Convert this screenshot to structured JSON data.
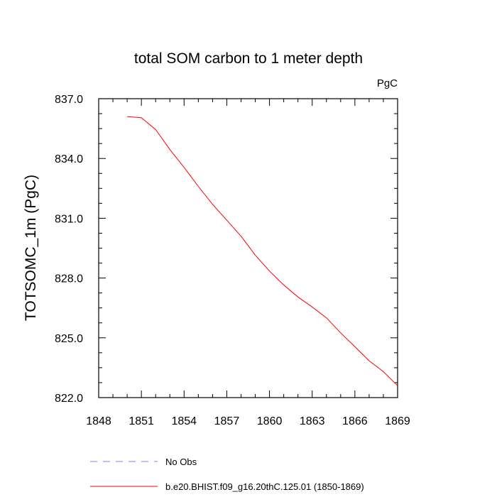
{
  "chart_data": {
    "type": "line",
    "title": "total SOM carbon to 1 meter depth",
    "units_label": "PgC",
    "ylabel": "TOTSOMC_1m  (PgC)",
    "xlabel": "",
    "xlim": [
      1848,
      1869
    ],
    "ylim": [
      822.0,
      837.0
    ],
    "x_ticks": [
      1848,
      1851,
      1854,
      1857,
      1860,
      1863,
      1866,
      1869
    ],
    "x_tick_labels": [
      "1848",
      "1851",
      "1854",
      "1857",
      "1860",
      "1863",
      "1866",
      "1869"
    ],
    "y_ticks": [
      822.0,
      825.0,
      828.0,
      831.0,
      834.0,
      837.0
    ],
    "y_tick_labels": [
      "822.0",
      "825.0",
      "828.0",
      "831.0",
      "834.0",
      "837.0"
    ],
    "grid": false,
    "legend_position": "bottom",
    "series": [
      {
        "name": "b.e20.BHIST.f09_g16.20thC.125.01 (1850-1869)",
        "color": "#ff0000",
        "style": "solid",
        "x": [
          1850,
          1851,
          1852,
          1853,
          1854,
          1855,
          1856,
          1857,
          1858,
          1859,
          1860,
          1861,
          1862,
          1863,
          1864,
          1865,
          1866,
          1867,
          1868,
          1869
        ],
        "values": [
          836.1,
          836.05,
          835.45,
          834.45,
          833.55,
          832.6,
          831.7,
          830.9,
          830.1,
          829.15,
          828.35,
          827.65,
          827.05,
          826.55,
          826.0,
          825.25,
          824.55,
          823.85,
          823.3,
          822.6
        ]
      }
    ],
    "legend": [
      {
        "label": "No Obs",
        "color": "#8080ff",
        "style": "dashed"
      },
      {
        "label": "b.e20.BHIST.f09_g16.20thC.125.01 (1850-1869)",
        "color": "#ff0000",
        "style": "solid"
      }
    ]
  }
}
